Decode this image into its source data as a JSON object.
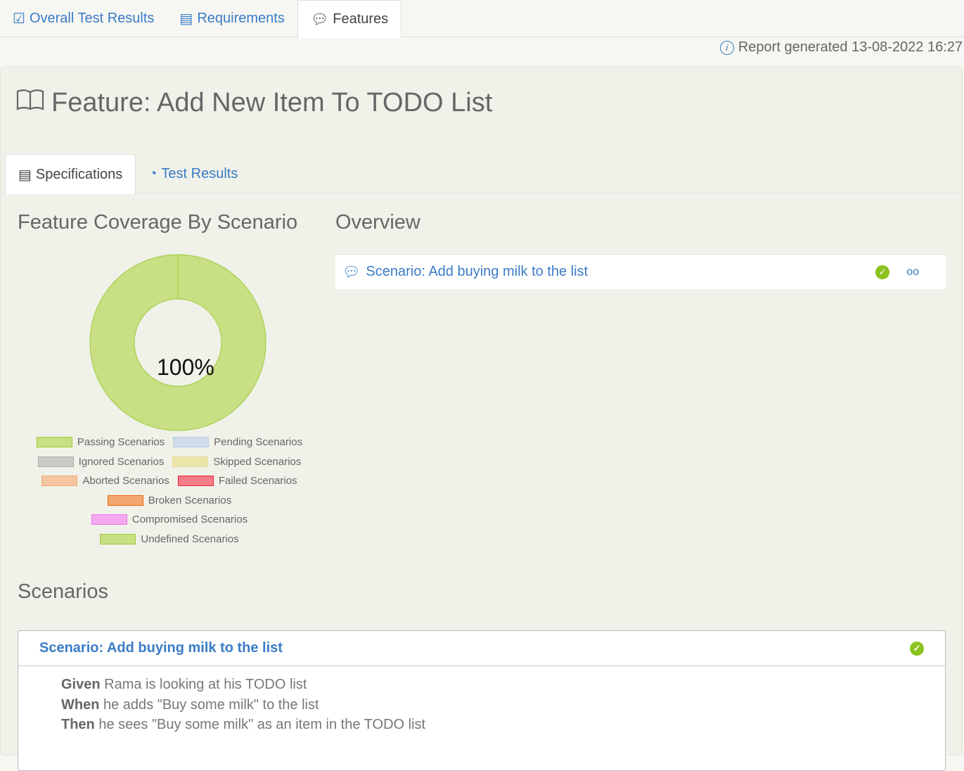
{
  "nav": {
    "tabs": [
      {
        "label": "Overall Test Results",
        "icon": "checklist-icon"
      },
      {
        "label": "Requirements",
        "icon": "notebook-icon"
      },
      {
        "label": "Features",
        "icon": "speech-bubble-icon",
        "active": true
      }
    ]
  },
  "report": {
    "text": "Report generated 13-08-2022 16:27"
  },
  "feature": {
    "title": "Feature: Add New Item To TODO List"
  },
  "subtabs": [
    {
      "label": "Specifications",
      "active": true
    },
    {
      "label": "Test Results"
    }
  ],
  "coverage": {
    "heading": "Feature Coverage By Scenario"
  },
  "chart_data": {
    "type": "pie",
    "donut": true,
    "center_label": "100%",
    "slices": [
      {
        "name": "Passing Scenarios",
        "value": 100,
        "color": "#c8df84"
      }
    ],
    "legend": [
      {
        "name": "Passing Scenarios",
        "fill": "#c8df84",
        "stroke": "#9ccc3a"
      },
      {
        "name": "Pending Scenarios",
        "fill": "#cfdcea",
        "stroke": "#b7cde6"
      },
      {
        "name": "Ignored Scenarios",
        "fill": "#cbcbc5",
        "stroke": "#aaa"
      },
      {
        "name": "Skipped Scenarios",
        "fill": "#ede4a8",
        "stroke": "#e4dca0"
      },
      {
        "name": "Aborted Scenarios",
        "fill": "#f5c5a2",
        "stroke": "#f0a878"
      },
      {
        "name": "Failed Scenarios",
        "fill": "#f47c88",
        "stroke": "#e8283c"
      },
      {
        "name": "Broken Scenarios",
        "fill": "#f2a870",
        "stroke": "#ee6410"
      },
      {
        "name": "Compromised Scenarios",
        "fill": "#f3a8f0",
        "stroke": "#ea78e6"
      },
      {
        "name": "Undefined Scenarios",
        "fill": "#c8df84",
        "stroke": "#9ccc3a"
      }
    ]
  },
  "overview": {
    "heading": "Overview",
    "scenario": "Scenario: Add buying milk to the list",
    "status": "passed"
  },
  "scenarios": {
    "heading": "Scenarios",
    "title": "Scenario: Add buying milk to the list",
    "steps": [
      {
        "kw": "Given",
        "text": " Rama is looking at his TODO list"
      },
      {
        "kw": "When",
        "text": " he adds \"Buy some milk\" to the list"
      },
      {
        "kw": "Then",
        "text": " he sees \"Buy some milk\" as an item in the TODO list"
      }
    ]
  }
}
